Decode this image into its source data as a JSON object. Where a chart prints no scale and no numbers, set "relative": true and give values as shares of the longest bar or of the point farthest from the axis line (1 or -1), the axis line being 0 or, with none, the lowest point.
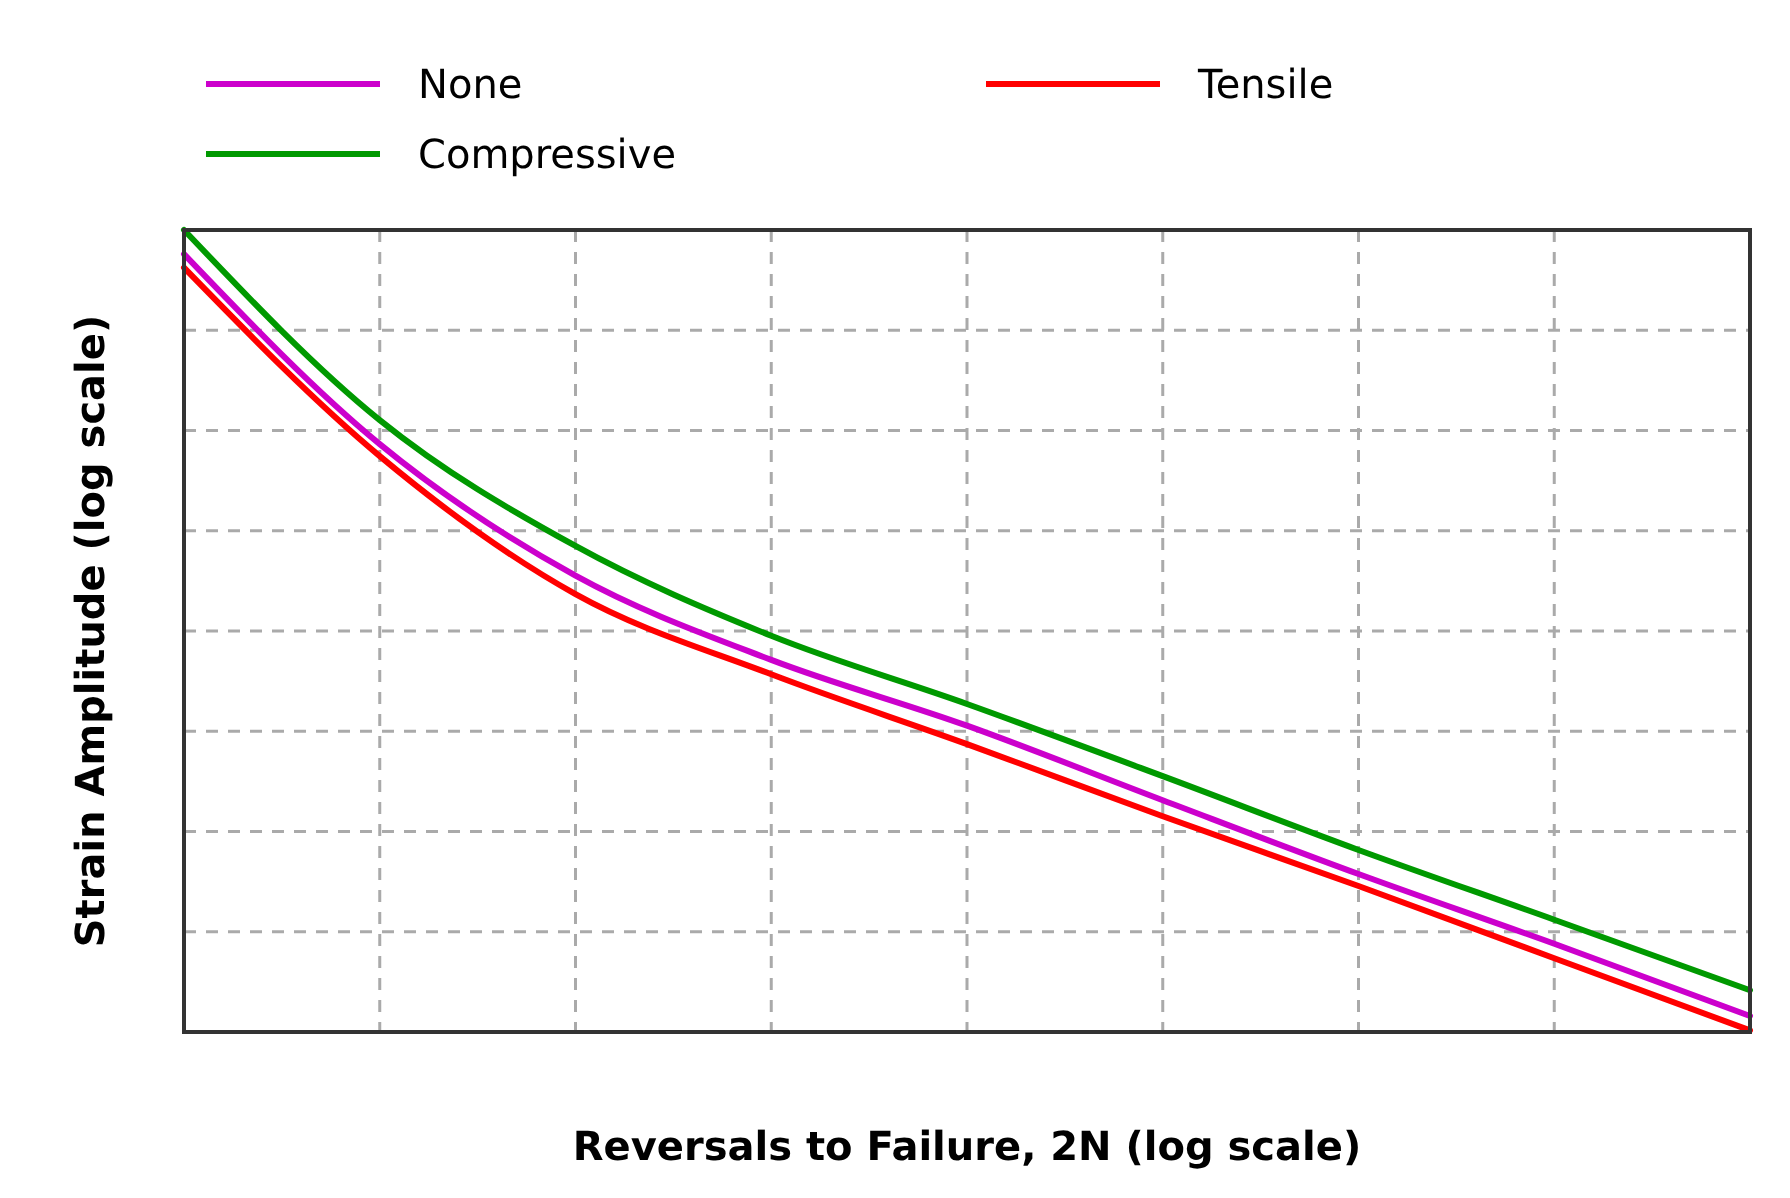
{
  "chart_data": {
    "type": "line",
    "xlabel": "Reversals to Failure, 2N (log scale)",
    "ylabel": "Strain Amplitude (log scale)",
    "relative": true,
    "grid": true,
    "legend": "top",
    "marker": "none",
    "line_style": "solid",
    "categories": [
      null,
      null,
      null,
      null,
      null,
      null,
      null,
      null,
      null
    ],
    "series": [
      {
        "name": "None",
        "color": "#cc00cc",
        "values": [
          0.97,
          0.733,
          0.569,
          0.464,
          0.382,
          0.289,
          0.197,
          0.11,
          0.02
        ]
      },
      {
        "name": "Tensile",
        "color": "#ff0000",
        "values": [
          0.953,
          0.718,
          0.546,
          0.446,
          0.359,
          0.269,
          0.182,
          0.092,
          0.002
        ]
      },
      {
        "name": "Compressive",
        "color": "#009900",
        "values": [
          1,
          0.763,
          0.606,
          0.494,
          0.409,
          0.319,
          0.227,
          0.14,
          0.052
        ]
      }
    ]
  }
}
